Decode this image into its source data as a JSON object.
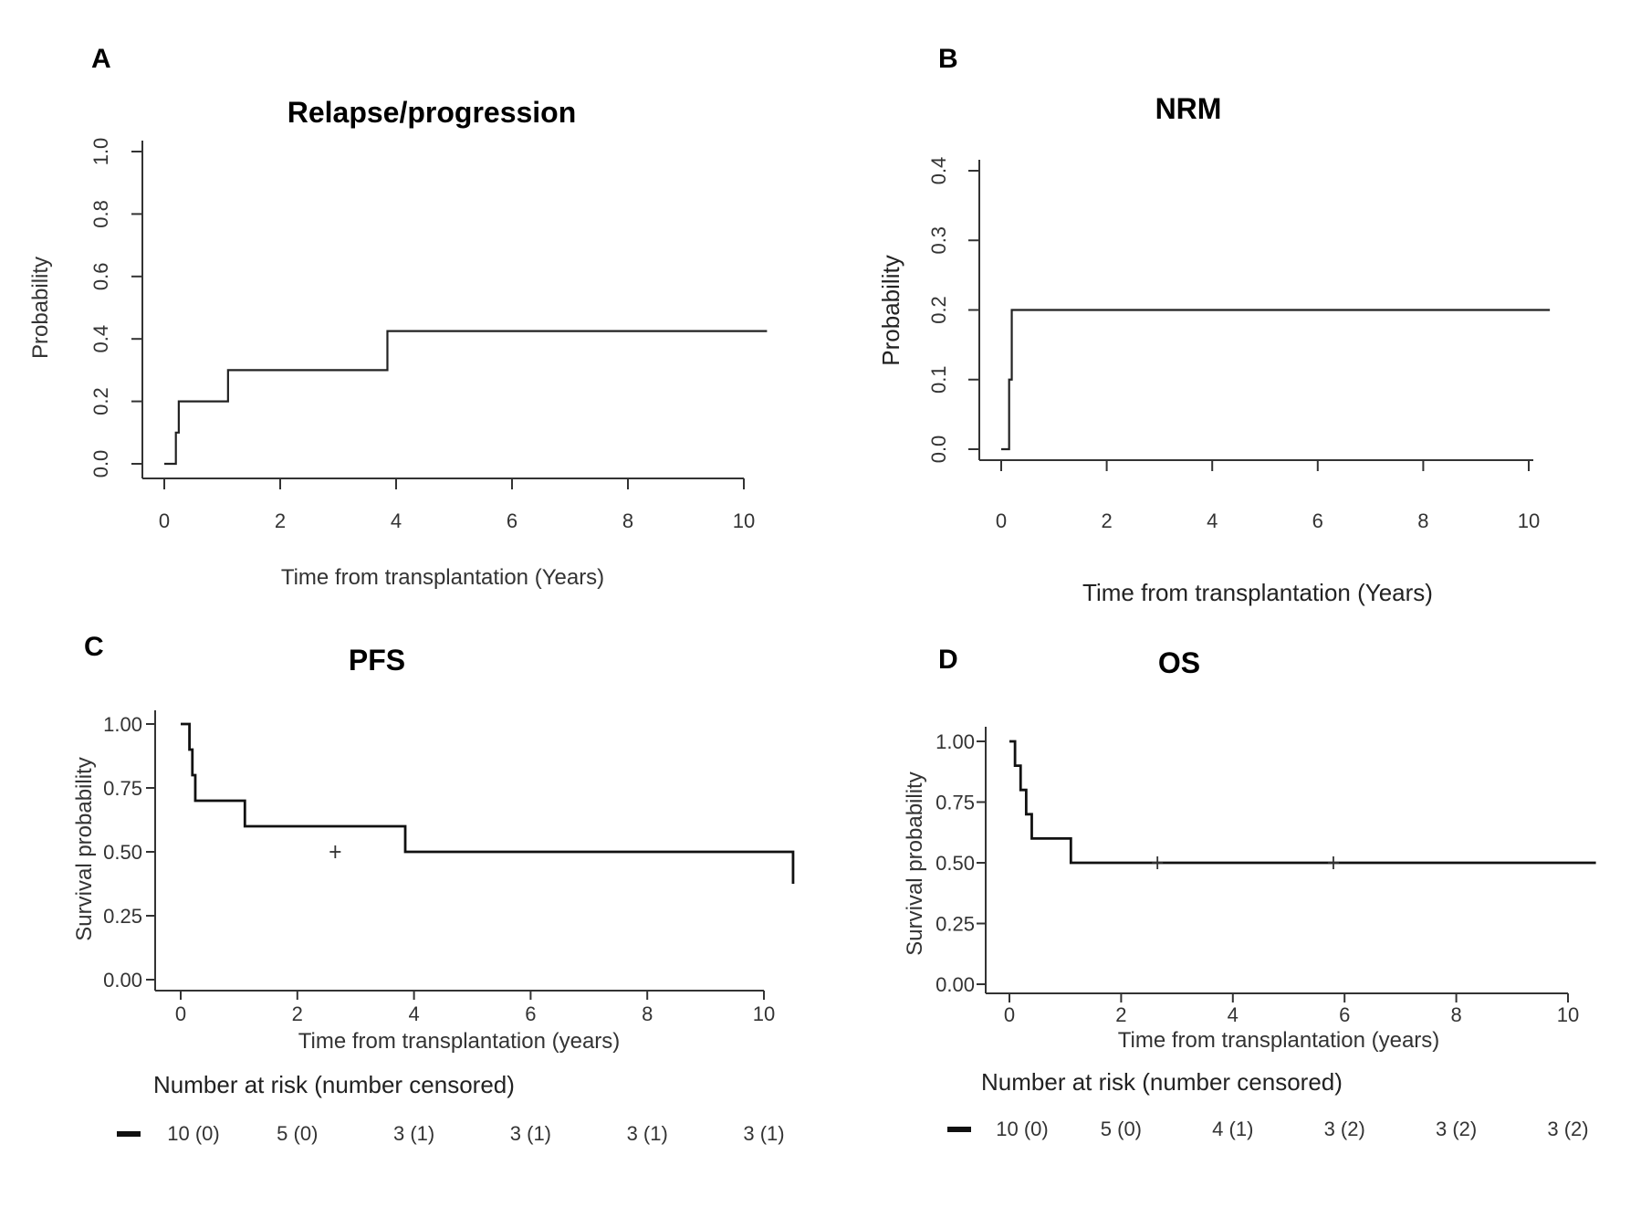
{
  "chart_data": [
    {
      "panel": "A",
      "type": "line",
      "step": true,
      "title": "Relapse/progression",
      "xlabel": "Time from transplantation (Years)",
      "ylabel": "Probability",
      "xlim": [
        0,
        10.4
      ],
      "ylim": [
        0,
        1.0
      ],
      "xticks": [
        0,
        2,
        4,
        6,
        8,
        10
      ],
      "xtick_labels": [
        "0",
        "2",
        "4",
        "6",
        "8",
        "10"
      ],
      "yticks": [
        0,
        0.2,
        0.4,
        0.6,
        0.8,
        1.0
      ],
      "ytick_labels": [
        "0.0",
        "0.2",
        "0.4",
        "0.6",
        "0.8",
        "1.0"
      ],
      "series": [
        {
          "x": [
            0,
            0.2,
            0.25,
            1.1,
            3.85,
            10.4
          ],
          "y": [
            0,
            0.1,
            0.2,
            0.3,
            0.425,
            0.425
          ]
        }
      ]
    },
    {
      "panel": "B",
      "type": "line",
      "step": true,
      "title": "NRM",
      "xlabel": "Time from transplantation (Years)",
      "ylabel": "Probability",
      "xlim": [
        0,
        10.4
      ],
      "ylim": [
        0,
        0.4
      ],
      "xticks": [
        0,
        2,
        4,
        6,
        8,
        10
      ],
      "xtick_labels": [
        "0",
        "2",
        "4",
        "6",
        "8",
        "10"
      ],
      "yticks": [
        0,
        0.1,
        0.2,
        0.3,
        0.4
      ],
      "ytick_labels": [
        "0.0",
        "0.1",
        "0.2",
        "0.3",
        "0.4"
      ],
      "series": [
        {
          "x": [
            0,
            0.15,
            0.2,
            10.4
          ],
          "y": [
            0,
            0.1,
            0.2,
            0.2
          ]
        }
      ]
    },
    {
      "panel": "C",
      "type": "line",
      "step": true,
      "title": "PFS",
      "xlabel": "Time from transplantation (years)",
      "ylabel": "Survival probability",
      "xlim": [
        0,
        10.5
      ],
      "ylim": [
        0,
        1.0
      ],
      "xticks": [
        0,
        2,
        4,
        6,
        8,
        10
      ],
      "xtick_labels": [
        "0",
        "2",
        "4",
        "6",
        "8",
        "10"
      ],
      "yticks": [
        0,
        0.25,
        0.5,
        0.75,
        1.0
      ],
      "ytick_labels": [
        "0.00",
        "0.25",
        "0.50",
        "0.75",
        "1.00"
      ],
      "series": [
        {
          "x": [
            0,
            0.15,
            0.2,
            0.25,
            1.1,
            3.85,
            10.5
          ],
          "y": [
            1.0,
            0.9,
            0.8,
            0.7,
            0.6,
            0.5,
            0.375
          ],
          "censored": [
            {
              "x": 2.65,
              "y": 0.5
            }
          ]
        }
      ],
      "risk_table": {
        "title": "Number at risk (number censored)",
        "labels": [
          "10 (0)",
          "5 (0)",
          "3 (1)",
          "3 (1)",
          "3 (1)",
          "3 (1)"
        ],
        "times": [
          0,
          2,
          4,
          6,
          8,
          10
        ]
      }
    },
    {
      "panel": "D",
      "type": "line",
      "step": true,
      "title": "OS",
      "xlabel": "Time from transplantation (years)",
      "ylabel": "Survival probability",
      "xlim": [
        0,
        10.5
      ],
      "ylim": [
        0,
        1.0
      ],
      "xticks": [
        0,
        2,
        4,
        6,
        8,
        10
      ],
      "xtick_labels": [
        "0",
        "2",
        "4",
        "6",
        "8",
        "10"
      ],
      "yticks": [
        0,
        0.25,
        0.5,
        0.75,
        1.0
      ],
      "ytick_labels": [
        "0.00",
        "0.25",
        "0.50",
        "0.75",
        "1.00"
      ],
      "series": [
        {
          "x": [
            0,
            0.1,
            0.2,
            0.3,
            0.4,
            1.1,
            10.5
          ],
          "y": [
            1.0,
            0.9,
            0.8,
            0.7,
            0.6,
            0.5,
            0.5
          ],
          "censored": [
            {
              "x": 2.65,
              "y": 0.5
            },
            {
              "x": 5.8,
              "y": 0.5
            }
          ]
        }
      ],
      "risk_table": {
        "title": "Number at risk (number censored)",
        "labels": [
          "10 (0)",
          "5 (0)",
          "4 (1)",
          "3 (2)",
          "3 (2)",
          "3 (2)"
        ],
        "times": [
          0,
          2,
          4,
          6,
          8,
          10
        ]
      }
    }
  ]
}
